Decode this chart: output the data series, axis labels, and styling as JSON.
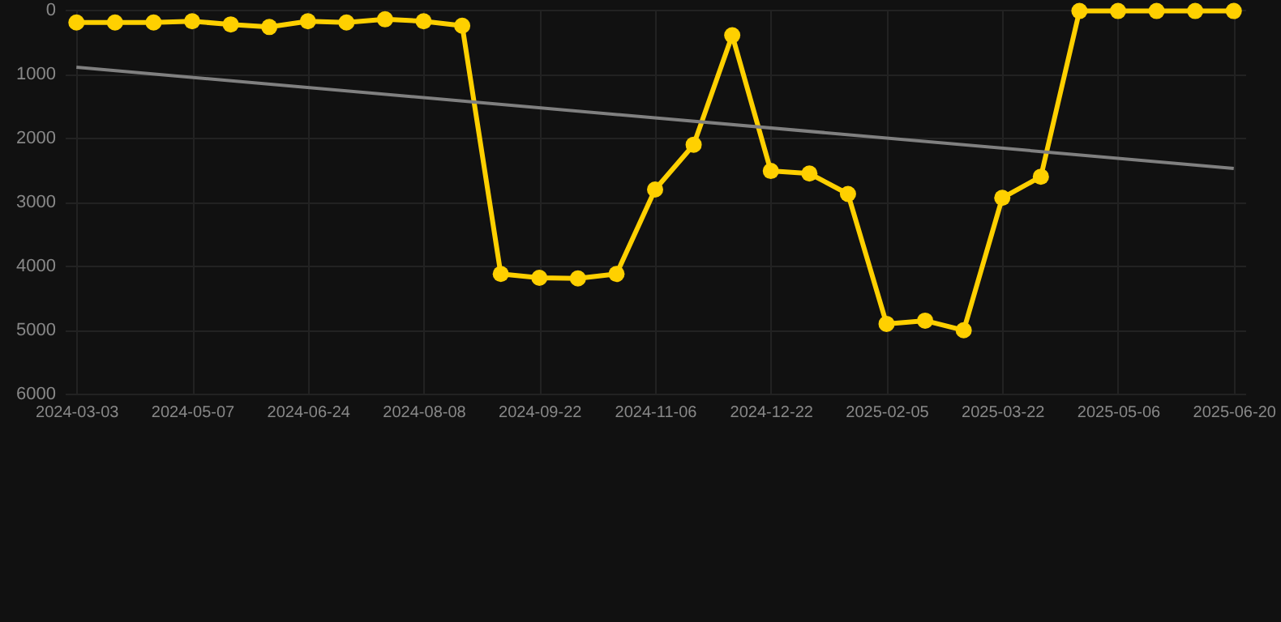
{
  "chart_data": {
    "type": "line",
    "categories": [
      "2024-03-03",
      null,
      null,
      "2024-05-07",
      null,
      null,
      "2024-06-24",
      null,
      null,
      "2024-08-08",
      null,
      null,
      "2024-09-22",
      null,
      null,
      "2024-11-06",
      null,
      null,
      "2024-12-22",
      null,
      null,
      "2025-02-05",
      null,
      null,
      "2025-03-22",
      null,
      null,
      "2025-05-06",
      null,
      null,
      "2025-06-20"
    ],
    "series": [
      {
        "color": "#ffd000",
        "marker": "circle",
        "values": [
          200,
          200,
          200,
          180,
          230,
          270,
          180,
          200,
          150,
          180,
          250,
          4130,
          4190,
          4200,
          4130,
          2810,
          2110,
          400,
          2520,
          2560,
          2880,
          4910,
          4860,
          5010,
          2940,
          2610,
          20,
          20,
          20,
          20,
          20
        ]
      },
      {
        "color": "#808080",
        "marker": "none",
        "values": [
          900,
          null,
          null,
          null,
          null,
          null,
          null,
          null,
          null,
          null,
          null,
          null,
          null,
          null,
          null,
          null,
          null,
          null,
          null,
          null,
          null,
          null,
          null,
          null,
          null,
          null,
          null,
          null,
          null,
          null,
          2480
        ]
      }
    ],
    "ylim": [
      6000,
      0
    ],
    "yticks": [
      0,
      1000,
      2000,
      3000,
      4000,
      5000,
      6000
    ],
    "grid": true
  }
}
